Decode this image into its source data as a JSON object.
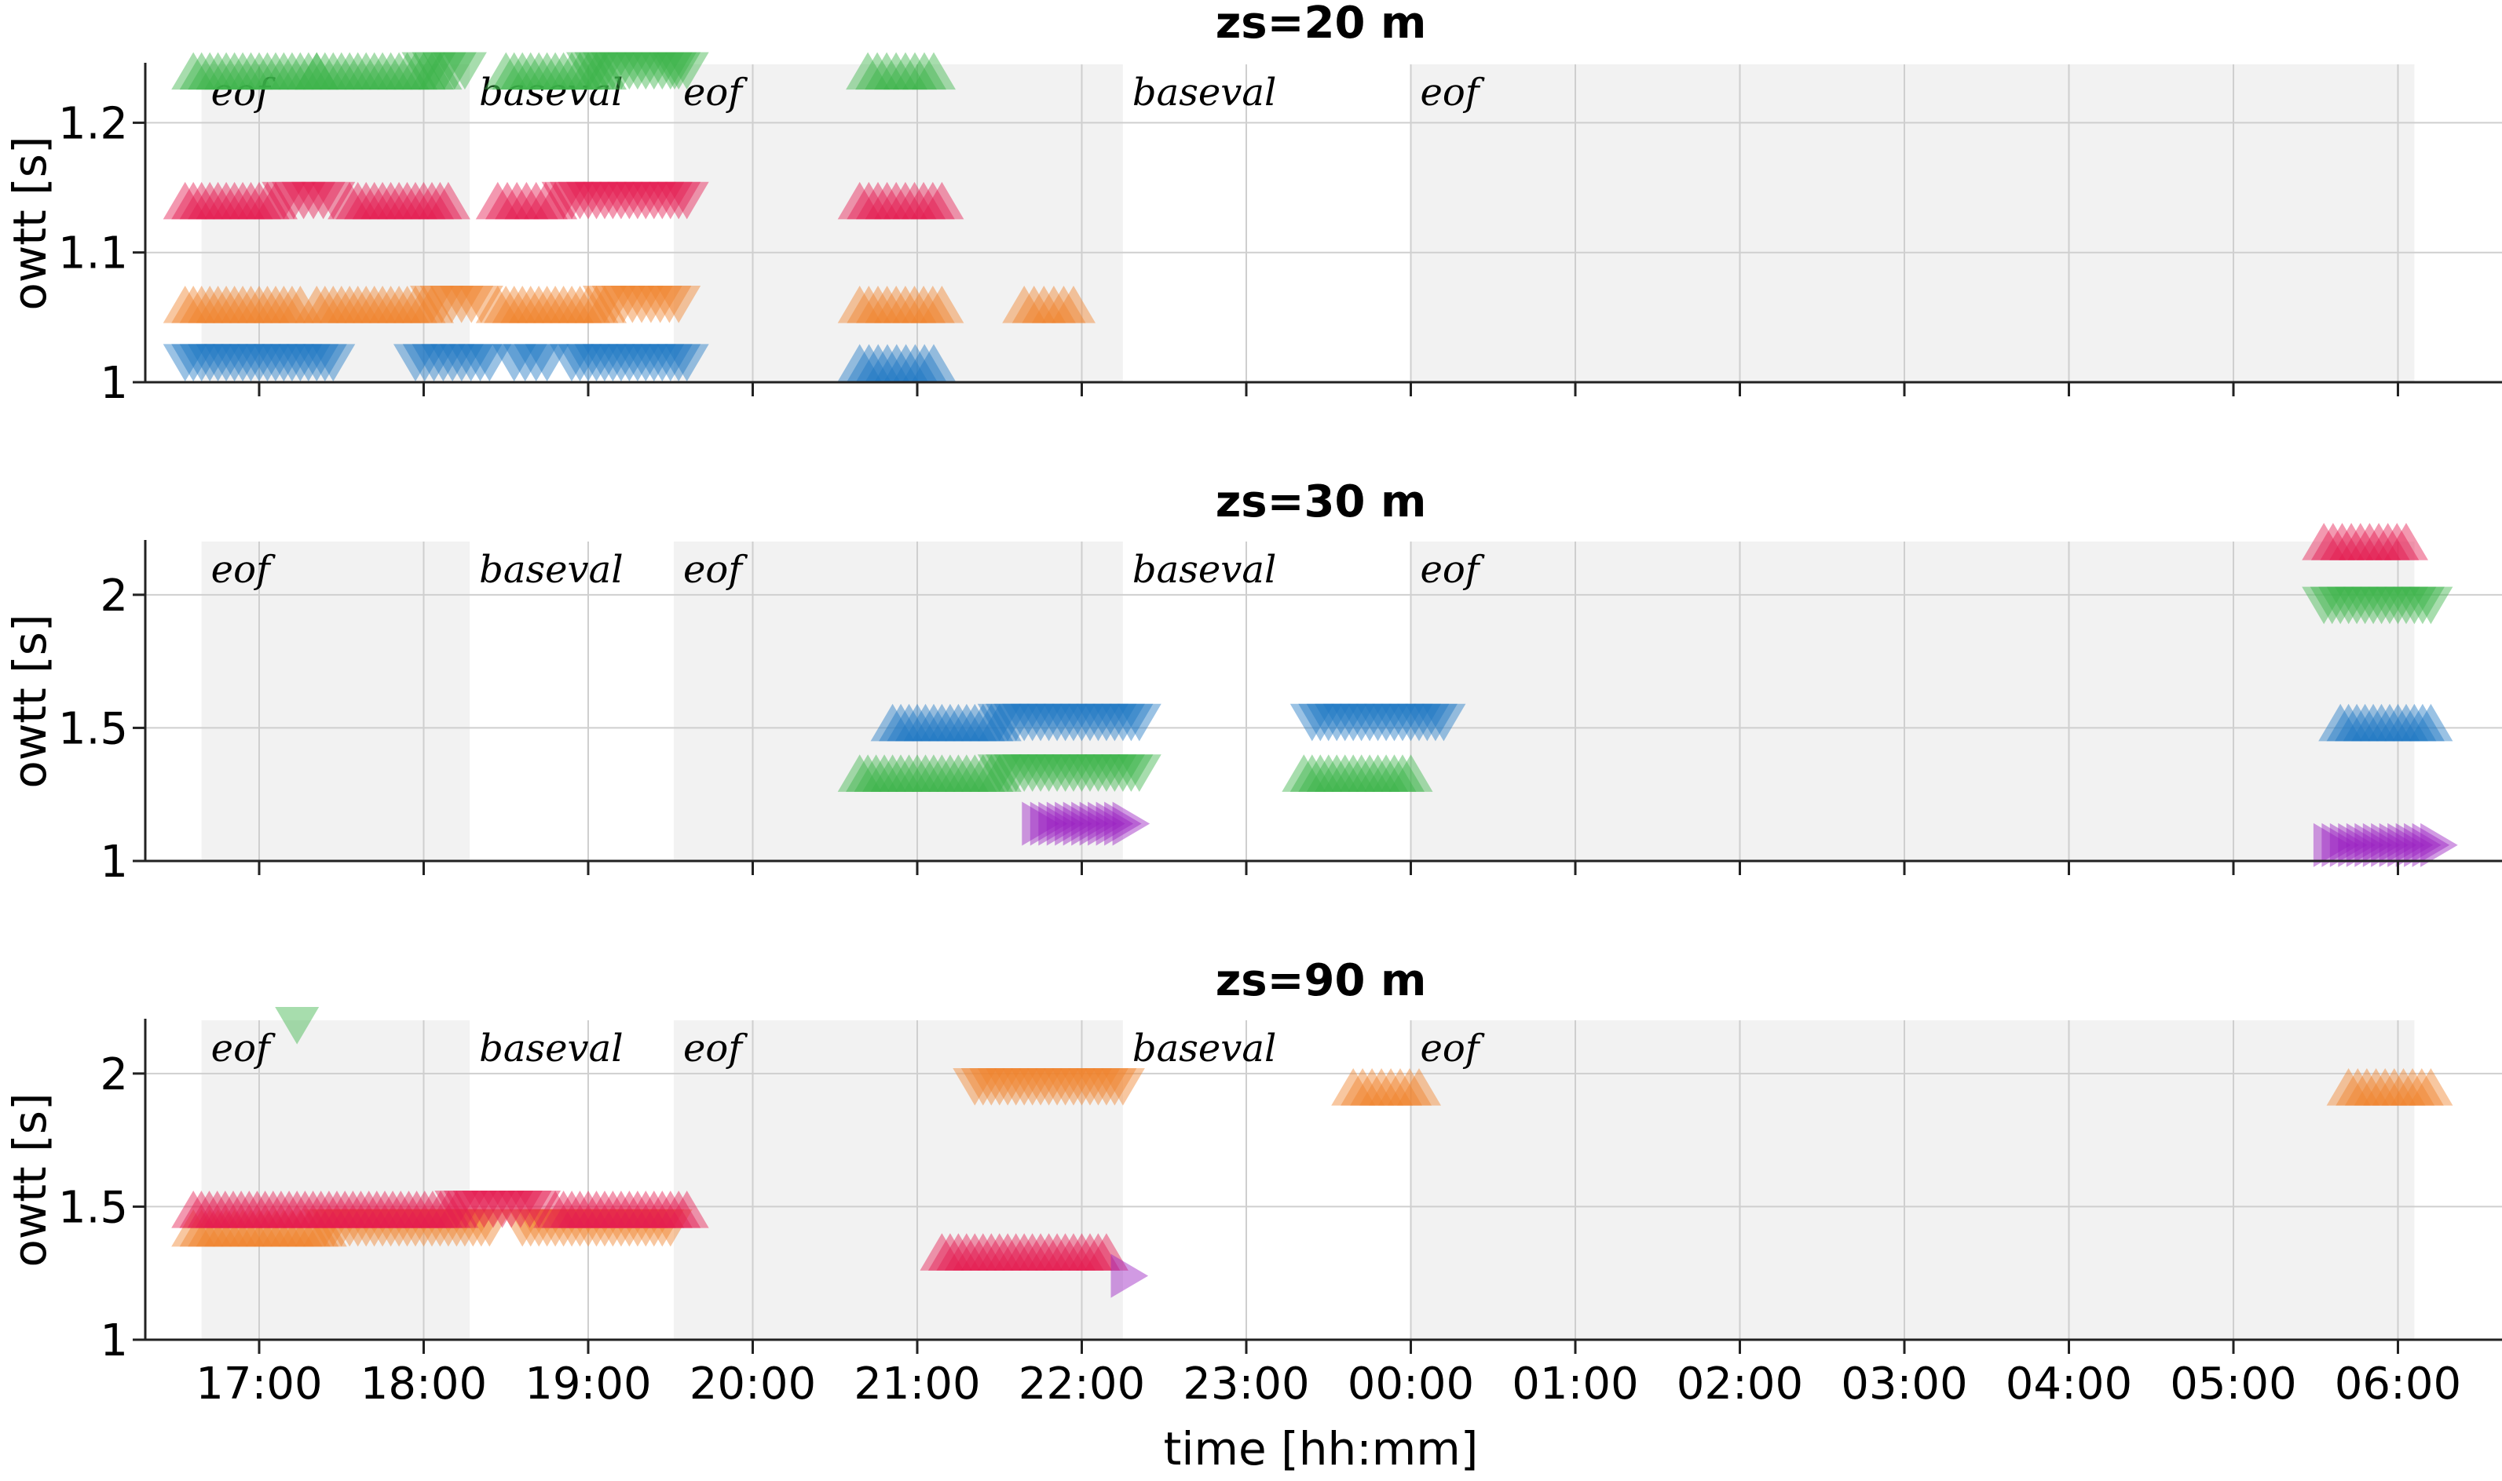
{
  "chart_data": {
    "type": "scatter",
    "x_axis": {
      "label": "time [hh:mm]",
      "ticks": [
        {
          "hours": 17,
          "label": "17:00"
        },
        {
          "hours": 18,
          "label": "18:00"
        },
        {
          "hours": 19,
          "label": "19:00"
        },
        {
          "hours": 20,
          "label": "20:00"
        },
        {
          "hours": 21,
          "label": "21:00"
        },
        {
          "hours": 22,
          "label": "22:00"
        },
        {
          "hours": 23,
          "label": "23:00"
        },
        {
          "hours": 24,
          "label": "00:00"
        },
        {
          "hours": 25,
          "label": "01:00"
        },
        {
          "hours": 26,
          "label": "02:00"
        },
        {
          "hours": 27,
          "label": "03:00"
        },
        {
          "hours": 28,
          "label": "04:00"
        },
        {
          "hours": 29,
          "label": "05:00"
        },
        {
          "hours": 30,
          "label": "06:00"
        }
      ],
      "range_hours": [
        16.3,
        30.7
      ],
      "grid": true
    },
    "colors": {
      "blue": "#1f77c4",
      "orange": "#f0832d",
      "red": "#e41b50",
      "green": "#3cb34a",
      "purple": "#9a1fc2",
      "band": "#f2f2f2",
      "grid": "#cfcfcf"
    },
    "bands": [
      {
        "start_hours": 16.65,
        "end_hours": 18.28,
        "label": "eof",
        "shaded": true
      },
      {
        "start_hours": 18.28,
        "end_hours": 19.52,
        "label": "baseval",
        "shaded": false
      },
      {
        "start_hours": 19.52,
        "end_hours": 22.25,
        "label": "eof",
        "shaded": true
      },
      {
        "start_hours": 22.25,
        "end_hours": 24.0,
        "label": "baseval",
        "shaded": false
      },
      {
        "start_hours": 24.0,
        "end_hours": 30.1,
        "label": "eof",
        "shaded": true
      }
    ],
    "panels": [
      {
        "title": "zs=20 m",
        "ylabel": "owtt [s]",
        "ylim": [
          1.0,
          1.245
        ],
        "yticks": [
          {
            "v": 1.0,
            "label": "1"
          },
          {
            "v": 1.1,
            "label": "1.1"
          },
          {
            "v": 1.2,
            "label": "1.2"
          }
        ],
        "series": [
          {
            "color": "green",
            "y": 1.24,
            "segments": [
              [
                16.6,
                17.35,
                "up"
              ],
              [
                17.35,
                18.1,
                "up"
              ],
              [
                18.0,
                18.25,
                "down"
              ],
              [
                19.5,
                19.55,
                "down"
              ],
              [
                18.5,
                19.1,
                "up"
              ],
              [
                19.0,
                19.6,
                "down"
              ],
              [
                20.7,
                21.1,
                "up"
              ]
            ]
          },
          {
            "color": "red",
            "y": 1.14,
            "segments": [
              [
                16.55,
                17.1,
                "up"
              ],
              [
                17.15,
                17.45,
                "down"
              ],
              [
                17.55,
                18.15,
                "up"
              ],
              [
                18.45,
                18.8,
                "up"
              ],
              [
                18.85,
                19.6,
                "down"
              ],
              [
                20.65,
                21.15,
                "up"
              ]
            ]
          },
          {
            "color": "orange",
            "y": 1.06,
            "segments": [
              [
                16.55,
                17.25,
                "up"
              ],
              [
                17.35,
                18.05,
                "up"
              ],
              [
                18.05,
                18.35,
                "down"
              ],
              [
                18.45,
                19.1,
                "up"
              ],
              [
                19.1,
                19.55,
                "down"
              ],
              [
                20.65,
                21.15,
                "up"
              ],
              [
                21.65,
                21.95,
                "up"
              ]
            ]
          },
          {
            "color": "blue",
            "y": 1.015,
            "segments": [
              [
                16.55,
                17.45,
                "down"
              ],
              [
                17.95,
                18.4,
                "down"
              ],
              [
                18.55,
                18.75,
                "down"
              ],
              [
                18.9,
                19.6,
                "down"
              ],
              [
                20.65,
                21.1,
                "up"
              ]
            ]
          }
        ]
      },
      {
        "title": "zs=30 m",
        "ylabel": "owtt [s]",
        "ylim": [
          1.0,
          2.2
        ],
        "yticks": [
          {
            "v": 1.0,
            "label": "1"
          },
          {
            "v": 1.5,
            "label": "1.5"
          },
          {
            "v": 2.0,
            "label": "2"
          }
        ],
        "series": [
          {
            "color": "red",
            "y": 2.2,
            "segments": [
              [
                29.55,
                30.05,
                "up"
              ]
            ]
          },
          {
            "color": "green",
            "y": 1.96,
            "segments": [
              [
                29.55,
                30.2,
                "down"
              ]
            ]
          },
          {
            "color": "blue",
            "y": 1.52,
            "segments": [
              [
                20.85,
                21.5,
                "up"
              ],
              [
                21.5,
                22.35,
                "down"
              ],
              [
                23.4,
                24.2,
                "down"
              ],
              [
                29.65,
                30.2,
                "up"
              ]
            ]
          },
          {
            "color": "green",
            "y": 1.33,
            "segments": [
              [
                20.65,
                21.5,
                "up"
              ],
              [
                21.5,
                22.35,
                "down"
              ],
              [
                23.35,
                24.0,
                "up"
              ]
            ]
          },
          {
            "color": "purple",
            "y": 1.14,
            "segments": [
              [
                21.75,
                22.3,
                "right"
              ]
            ]
          },
          {
            "color": "purple",
            "y": 1.06,
            "segments": [
              [
                29.6,
                30.25,
                "right"
              ]
            ]
          }
        ]
      },
      {
        "title": "zs=90 m",
        "ylabel": "owtt [s]",
        "ylim": [
          1.0,
          2.2
        ],
        "yticks": [
          {
            "v": 1.0,
            "label": "1"
          },
          {
            "v": 1.5,
            "label": "1.5"
          },
          {
            "v": 2.0,
            "label": "2"
          }
        ],
        "series": [
          {
            "color": "green",
            "y": 2.18,
            "segments": [
              [
                17.22,
                17.24,
                "down"
              ]
            ]
          },
          {
            "color": "orange",
            "y": 1.95,
            "segments": [
              [
                21.35,
                22.25,
                "down"
              ],
              [
                23.65,
                24.05,
                "up"
              ],
              [
                29.7,
                30.2,
                "up"
              ]
            ]
          },
          {
            "color": "orange",
            "y": 1.42,
            "segments": [
              [
                16.6,
                17.4,
                "up"
              ],
              [
                17.4,
                18.4,
                "down"
              ],
              [
                18.6,
                19.5,
                "down"
              ]
            ]
          },
          {
            "color": "red",
            "y": 1.49,
            "segments": [
              [
                16.6,
                18.2,
                "up"
              ],
              [
                18.2,
                18.7,
                "down"
              ],
              [
                18.8,
                19.6,
                "up"
              ]
            ]
          },
          {
            "color": "red",
            "y": 1.33,
            "segments": [
              [
                21.15,
                22.15,
                "up"
              ]
            ]
          },
          {
            "color": "purple",
            "y": 1.24,
            "segments": [
              [
                22.28,
                22.3,
                "right"
              ]
            ]
          }
        ]
      }
    ]
  }
}
